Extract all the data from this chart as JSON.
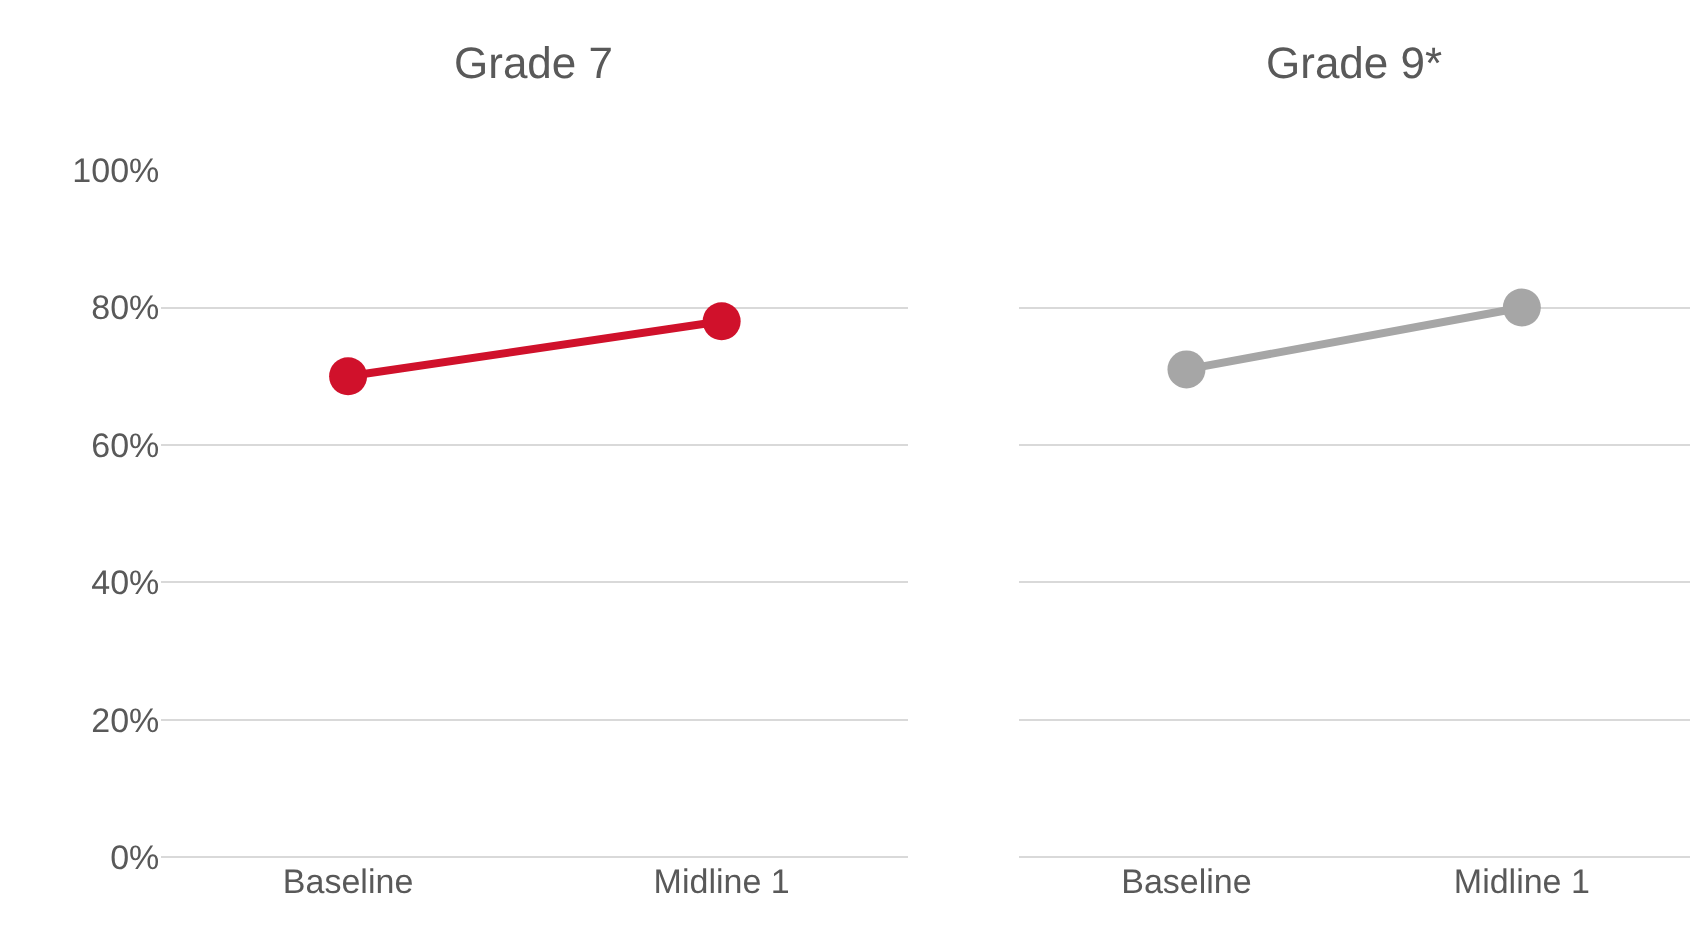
{
  "chart_data": [
    {
      "type": "line",
      "title": "Grade 7",
      "categories": [
        "Baseline",
        "Midline 1"
      ],
      "series": [
        {
          "color": "#d0112b",
          "values": [
            70,
            78
          ]
        }
      ],
      "ylim": [
        0,
        100
      ],
      "yticks": [
        {
          "value": 0,
          "label": "0%"
        },
        {
          "value": 20,
          "label": "20%"
        },
        {
          "value": 40,
          "label": "40%"
        },
        {
          "value": 60,
          "label": "60%"
        },
        {
          "value": 80,
          "label": "80%"
        },
        {
          "value": 100,
          "label": "100%"
        }
      ],
      "grid": "y",
      "marker": "circle",
      "line_style": "solid"
    },
    {
      "type": "line",
      "title": "Grade 9*",
      "categories": [
        "Baseline",
        "Midline 1"
      ],
      "series": [
        {
          "color": "#a6a6a6",
          "values": [
            71,
            80
          ]
        }
      ],
      "ylim": [
        0,
        100
      ],
      "yticks": [
        0,
        20,
        40,
        60,
        80,
        100
      ],
      "grid": "y",
      "marker": "circle",
      "line_style": "solid",
      "tick_labels": "x"
    }
  ]
}
